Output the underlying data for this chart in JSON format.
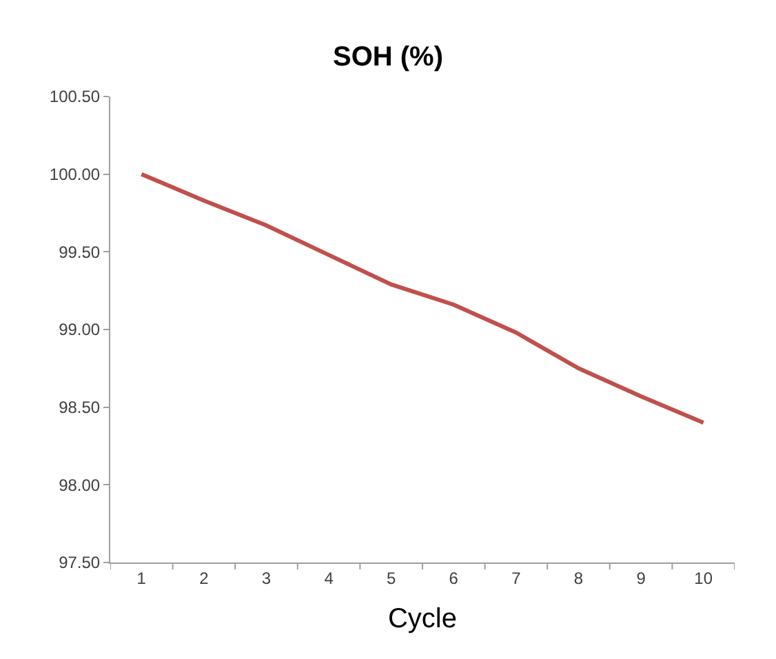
{
  "chart_data": {
    "type": "line",
    "title": "SOH (%)",
    "xlabel": "Cycle",
    "categories": [
      "1",
      "2",
      "3",
      "4",
      "5",
      "6",
      "7",
      "8",
      "9",
      "10"
    ],
    "series": [
      {
        "color": "#c0504d",
        "values": [
          100.0,
          99.83,
          99.67,
          99.48,
          99.29,
          99.16,
          98.98,
          98.75,
          98.57,
          98.4
        ]
      }
    ],
    "ylim": [
      97.5,
      100.5
    ],
    "yticks": [
      {
        "value": 97.5,
        "label": "97.50"
      },
      {
        "value": 98,
        "label": "98.00"
      },
      {
        "value": 98.5,
        "label": "98.50"
      },
      {
        "value": 99,
        "label": "99.00"
      },
      {
        "value": 99.5,
        "label": "99.50"
      },
      {
        "value": 100,
        "label": "100.00"
      },
      {
        "value": 100.5,
        "label": "100.50"
      }
    ],
    "marker": "none",
    "line_style": "solid"
  }
}
